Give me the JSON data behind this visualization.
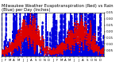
{
  "title": "Milwaukee Weather Evapotranspiration (Red) vs Rain (Blue) per Day (Inches)",
  "title_fontsize": 3.8,
  "background_color": "#ffffff",
  "grid_color": "#999999",
  "et_color": "#dd0000",
  "rain_color": "#0000dd",
  "ylim": [
    0,
    0.35
  ],
  "yticks": [
    0.05,
    0.1,
    0.15,
    0.2,
    0.25,
    0.3,
    0.35
  ],
  "ytick_labels": [
    "0.05",
    "0.10",
    "0.15",
    "0.20",
    "0.25",
    "0.30",
    "0.35"
  ],
  "ytick_fontsize": 3.0,
  "xtick_fontsize": 2.8,
  "figsize": [
    1.6,
    0.87
  ],
  "dpi": 100,
  "n_days": 730,
  "months_et": [
    0.04,
    0.05,
    0.08,
    0.11,
    0.15,
    0.18,
    0.2,
    0.18,
    0.14,
    0.1,
    0.06,
    0.04,
    0.04,
    0.05,
    0.08,
    0.11,
    0.15,
    0.18,
    0.2,
    0.18,
    0.14,
    0.1,
    0.06,
    0.04
  ],
  "months_rain": [
    0.08,
    0.07,
    0.09,
    0.11,
    0.12,
    0.14,
    0.13,
    0.12,
    0.11,
    0.1,
    0.09,
    0.08,
    0.08,
    0.07,
    0.09,
    0.11,
    0.12,
    0.14,
    0.13,
    0.12,
    0.11,
    0.1,
    0.09,
    0.08
  ],
  "days_per_month": [
    31,
    28,
    31,
    30,
    31,
    30,
    31,
    31,
    30,
    31,
    30,
    31,
    31,
    28,
    31,
    30,
    31,
    30,
    31,
    31,
    30,
    31,
    30,
    31
  ],
  "month_abbrevs": [
    "J",
    "F",
    "M",
    "A",
    "M",
    "J",
    "J",
    "A",
    "S",
    "O",
    "N",
    "D",
    "J",
    "F",
    "M",
    "A",
    "M",
    "J",
    "J",
    "A",
    "S",
    "O",
    "N",
    "D"
  ],
  "seed": 12
}
